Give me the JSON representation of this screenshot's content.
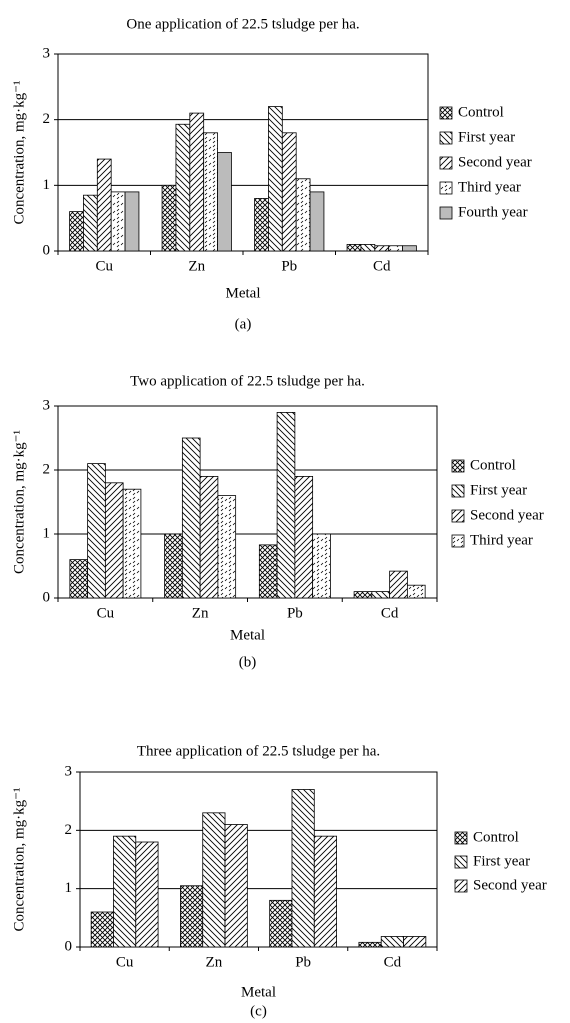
{
  "chart_data": [
    {
      "type": "bar",
      "title": "One application of 22.5 tsludge per ha.",
      "xlabel": "Metal",
      "ylabel": "Concentration, mg·kg⁻¹",
      "panel_label": "(a)",
      "categories": [
        "Cu",
        "Zn",
        "Pb",
        "Cd"
      ],
      "series": [
        {
          "name": "Control",
          "color": "#000000",
          "pattern": "crosshatch",
          "values": [
            0.6,
            1.0,
            0.8,
            0.1
          ]
        },
        {
          "name": "First year",
          "color": "#000000",
          "pattern": "backslash",
          "values": [
            0.85,
            1.93,
            2.2,
            0.1
          ]
        },
        {
          "name": "Second year",
          "color": "#000000",
          "pattern": "slash",
          "values": [
            1.4,
            2.1,
            1.8,
            0.08
          ]
        },
        {
          "name": "Third year",
          "color": "#000000",
          "pattern": "dashed",
          "values": [
            0.9,
            1.8,
            1.1,
            0.08
          ]
        },
        {
          "name": "Fourth year",
          "color": "#bbbbbb",
          "pattern": "solid",
          "values": [
            0.9,
            1.5,
            0.9,
            0.08
          ]
        }
      ],
      "ylim": [
        0,
        3
      ],
      "yticks": [
        0,
        1,
        2,
        3
      ],
      "grid": true,
      "legend": "right"
    },
    {
      "type": "bar",
      "title": "Two application of 22.5 tsludge per ha.",
      "xlabel": "Metal",
      "ylabel": "Concentration, mg·kg⁻¹",
      "panel_label": "(b)",
      "categories": [
        "Cu",
        "Zn",
        "Pb",
        "Cd"
      ],
      "series": [
        {
          "name": "Control",
          "color": "#000000",
          "pattern": "crosshatch",
          "values": [
            0.6,
            1.0,
            0.83,
            0.1
          ]
        },
        {
          "name": "First year",
          "color": "#000000",
          "pattern": "backslash",
          "values": [
            2.1,
            2.5,
            2.9,
            0.1
          ]
        },
        {
          "name": "Second year",
          "color": "#000000",
          "pattern": "slash",
          "values": [
            1.8,
            1.9,
            1.9,
            0.42
          ]
        },
        {
          "name": "Third year",
          "color": "#000000",
          "pattern": "dashed",
          "values": [
            1.7,
            1.6,
            1.0,
            0.2
          ]
        }
      ],
      "ylim": [
        0,
        3
      ],
      "yticks": [
        0,
        1,
        2,
        3
      ],
      "grid": true,
      "legend": "right"
    },
    {
      "type": "bar",
      "title": "Three application of 22.5 tsludge per ha.",
      "xlabel": "Metal",
      "ylabel": "Concentration, mg·kg⁻¹",
      "panel_label": "(c)",
      "categories": [
        "Cu",
        "Zn",
        "Pb",
        "Cd"
      ],
      "series": [
        {
          "name": "Control",
          "color": "#000000",
          "pattern": "crosshatch",
          "values": [
            0.6,
            1.05,
            0.8,
            0.08
          ]
        },
        {
          "name": "First year",
          "color": "#000000",
          "pattern": "backslash",
          "values": [
            1.9,
            2.3,
            2.7,
            0.18
          ]
        },
        {
          "name": "Second year",
          "color": "#000000",
          "pattern": "slash",
          "values": [
            1.8,
            2.1,
            1.9,
            0.18
          ]
        }
      ],
      "ylim": [
        0,
        3
      ],
      "yticks": [
        0,
        1,
        2,
        3
      ],
      "grid": true,
      "legend": "right"
    }
  ]
}
